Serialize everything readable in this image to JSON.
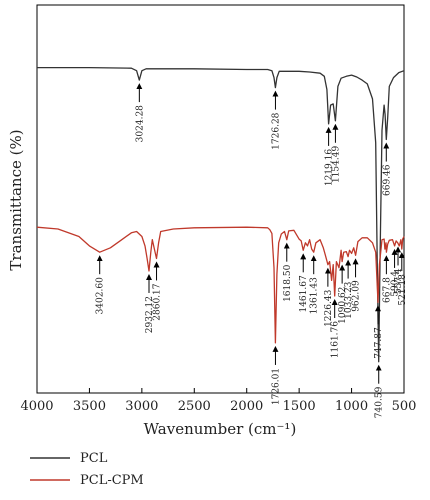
{
  "chart_data": {
    "type": "line",
    "title": "",
    "xlabel": "Wavenumber (cm⁻¹)",
    "ylabel": "Transmittance (%)",
    "xlim": [
      4000,
      500
    ],
    "x_reversed": true,
    "x_ticks": [
      4000,
      3500,
      3000,
      2500,
      2000,
      1500,
      1000,
      500
    ],
    "x_tick_labels": [
      "4000",
      "3500",
      "3000",
      "2500",
      "2000",
      "1500",
      "1000",
      "500"
    ],
    "y_ticks_shown": false,
    "grid": false,
    "legend_position": "bottom-left",
    "series": [
      {
        "name": "PCL",
        "color": "#333333",
        "x": [
          4000,
          3500,
          3100,
          3050,
          3024,
          3000,
          2960,
          2500,
          2000,
          1800,
          1760,
          1740,
          1726,
          1712,
          1690,
          1500,
          1400,
          1300,
          1260,
          1235,
          1219,
          1200,
          1175,
          1154,
          1130,
          1100,
          1050,
          1000,
          950,
          900,
          850,
          800,
          770,
          755,
          741,
          728,
          710,
          690,
          680,
          669,
          655,
          640,
          600,
          550,
          500
        ],
        "y": [
          92.0,
          92.0,
          91.9,
          91.5,
          90.0,
          91.5,
          91.8,
          91.8,
          91.7,
          91.7,
          91.5,
          90.4,
          88.8,
          90.4,
          91.4,
          91.4,
          91.3,
          91.1,
          90.6,
          88.5,
          83.0,
          86.0,
          86.2,
          83.5,
          89.0,
          90.3,
          90.6,
          90.8,
          90.5,
          90.0,
          89.4,
          87.0,
          80.0,
          60.0,
          45.0,
          62.0,
          82.0,
          86.0,
          84.5,
          80.5,
          84.0,
          89.0,
          90.4,
          91.2,
          91.5
        ]
      },
      {
        "name": "PCL-CPM",
        "color": "#c0392b",
        "x": [
          4000,
          3800,
          3600,
          3500,
          3402,
          3300,
          3200,
          3100,
          3050,
          3000,
          2970,
          2950,
          2932,
          2915,
          2900,
          2880,
          2860,
          2840,
          2820,
          2700,
          2500,
          2000,
          1800,
          1780,
          1760,
          1740,
          1726,
          1712,
          1695,
          1670,
          1640,
          1618,
          1600,
          1550,
          1500,
          1480,
          1461,
          1440,
          1420,
          1400,
          1380,
          1361,
          1340,
          1300,
          1270,
          1250,
          1226,
          1210,
          1190,
          1175,
          1161,
          1145,
          1120,
          1100,
          1090,
          1075,
          1050,
          1033,
          1020,
          1000,
          980,
          962,
          940,
          900,
          850,
          800,
          770,
          760,
          748,
          735,
          710,
          690,
          682,
          672,
          668,
          655,
          640,
          610,
          590,
          575,
          560,
          545,
          530,
          521,
          512,
          500
        ],
        "y": [
          66.5,
          66.2,
          65.0,
          63.5,
          62.5,
          63.2,
          64.4,
          65.6,
          65.8,
          65.0,
          63.5,
          61.5,
          59.5,
          62.5,
          64.5,
          63.0,
          61.5,
          64.0,
          65.8,
          66.2,
          66.4,
          66.5,
          66.4,
          66.1,
          65.5,
          60.0,
          48.0,
          59.0,
          64.0,
          65.4,
          65.8,
          64.5,
          65.9,
          66.0,
          64.6,
          64.3,
          62.8,
          64.0,
          63.5,
          64.5,
          63.0,
          62.5,
          64.0,
          64.5,
          63.2,
          62.0,
          60.5,
          61.0,
          58.0,
          60.5,
          55.5,
          61.0,
          60.0,
          62.8,
          61.0,
          62.5,
          62.6,
          61.8,
          62.8,
          62.3,
          63.2,
          62.0,
          64.2,
          64.8,
          64.8,
          64.0,
          62.5,
          59.0,
          54.5,
          60.5,
          64.5,
          64.6,
          63.0,
          64.0,
          62.5,
          63.8,
          64.4,
          64.5,
          63.5,
          64.3,
          64.0,
          63.5,
          64.5,
          63.0,
          64.6,
          65.0
        ]
      }
    ],
    "annotations": [
      {
        "label": "3024.28",
        "series": "PCL",
        "x": 3024
      },
      {
        "label": "1726.28",
        "series": "PCL",
        "x": 1726
      },
      {
        "label": "1219.16",
        "series": "PCL",
        "x": 1219
      },
      {
        "label": "1154.49",
        "series": "PCL",
        "x": 1154
      },
      {
        "label": "740.59",
        "series": "PCL",
        "x": 741
      },
      {
        "label": "669.46",
        "series": "PCL",
        "x": 669
      },
      {
        "label": "3402.60",
        "series": "PCL-CPM",
        "x": 3402
      },
      {
        "label": "2932.12",
        "series": "PCL-CPM",
        "x": 2932
      },
      {
        "label": "2860.17",
        "series": "PCL-CPM",
        "x": 2860
      },
      {
        "label": "1726.01",
        "series": "PCL-CPM",
        "x": 1726
      },
      {
        "label": "1618.50",
        "series": "PCL-CPM",
        "x": 1618
      },
      {
        "label": "1461.67",
        "series": "PCL-CPM",
        "x": 1461
      },
      {
        "label": "1361.43",
        "series": "PCL-CPM",
        "x": 1361
      },
      {
        "label": "1226.43",
        "series": "PCL-CPM",
        "x": 1226
      },
      {
        "label": "1161.76",
        "series": "PCL-CPM",
        "x": 1161
      },
      {
        "label": "1090.62",
        "series": "PCL-CPM",
        "x": 1090
      },
      {
        "label": "1033.23",
        "series": "PCL-CPM",
        "x": 1033
      },
      {
        "label": "962.09",
        "series": "PCL-CPM",
        "x": 962
      },
      {
        "label": "747.87",
        "series": "PCL-CPM",
        "x": 748
      },
      {
        "label": "667.8",
        "series": "PCL-CPM",
        "x": 668
      },
      {
        "label": "590.4",
        "series": "PCL-CPM",
        "x": 590
      },
      {
        "label": "557.4",
        "series": "PCL-CPM",
        "x": 557
      },
      {
        "label": "521.18",
        "series": "PCL-CPM",
        "x": 521
      }
    ]
  }
}
